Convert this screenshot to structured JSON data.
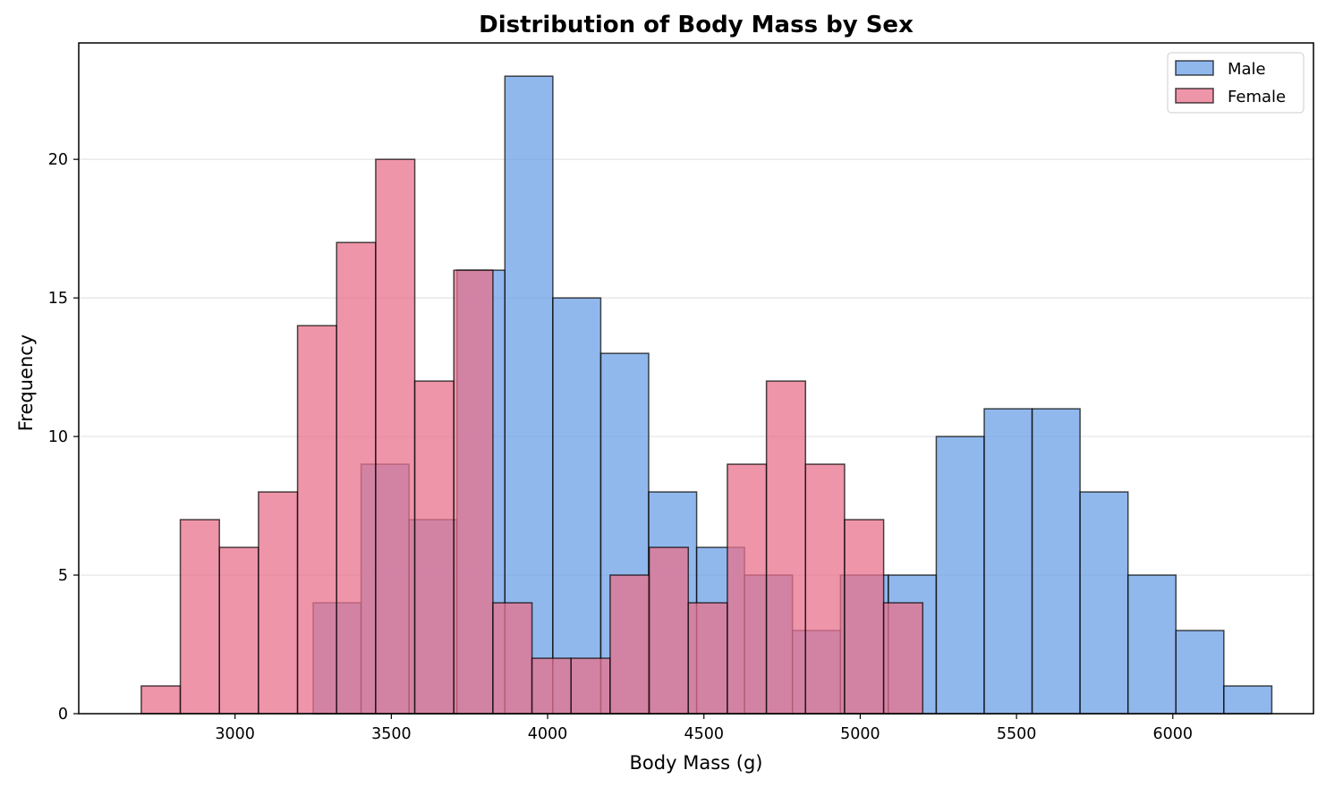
{
  "chart_data": {
    "type": "histogram",
    "title": "Distribution of Body Mass by Sex",
    "xlabel": "Body Mass (g)",
    "ylabel": "Frequency",
    "xlim": [
      2500,
      6450
    ],
    "ylim": [
      0,
      24.2
    ],
    "xticks": [
      3000,
      3500,
      4000,
      4500,
      5000,
      5500,
      6000
    ],
    "yticks": [
      0,
      5,
      10,
      15,
      20
    ],
    "grid": "horizontal",
    "legend": "top-right",
    "series": [
      {
        "name": "Male",
        "color": "#6ca0e6",
        "bin_edges": [
          3250,
          3403.3,
          3556.7,
          3710,
          3863.3,
          4016.7,
          4170,
          4323.3,
          4476.7,
          4630,
          4783.3,
          4936.7,
          5090,
          5243.3,
          5396.7,
          5550,
          5703.3,
          5856.7,
          6010,
          6163.3,
          6316.7
        ],
        "counts": [
          4,
          9,
          7,
          16,
          23,
          15,
          13,
          8,
          6,
          5,
          3,
          5,
          5,
          10,
          11,
          11,
          8,
          5,
          3,
          1
        ]
      },
      {
        "name": "Female",
        "color": "#e8728c",
        "bin_edges": [
          2700,
          2825,
          2950,
          3075,
          3200,
          3325,
          3450,
          3575,
          3700,
          3825,
          3950,
          4075,
          4200,
          4325,
          4450,
          4575,
          4700,
          4825,
          4950,
          5075,
          5200
        ],
        "counts": [
          1,
          7,
          6,
          8,
          14,
          17,
          20,
          12,
          16,
          4,
          2,
          2,
          5,
          6,
          4,
          9,
          12,
          9,
          7,
          4
        ]
      }
    ]
  }
}
